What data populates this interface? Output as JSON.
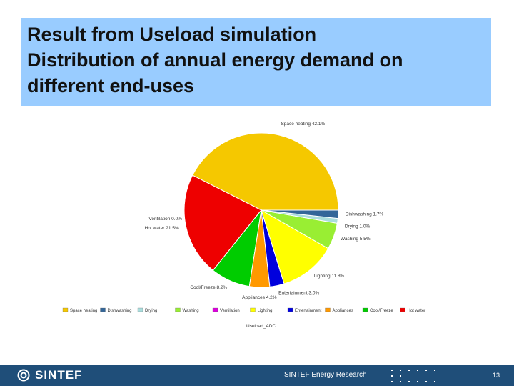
{
  "slide": {
    "title_lines": [
      "Result from Useload simulation",
      "Distribution of annual energy demand on",
      "different end-uses"
    ],
    "footer_org": "SINTEF Energy Research",
    "logo_text": "SINTEF",
    "page_number": "13",
    "footer_color": "#1f4e79",
    "title_bg_color": "#99ccff"
  },
  "chart_data": {
    "type": "pie",
    "caption": "Useload_ADC",
    "slices": [
      {
        "name": "Space heating",
        "value": 42.1,
        "label": "Space heating 42.1%",
        "color": "#f5c800"
      },
      {
        "name": "Hot water",
        "value": 21.5,
        "label": "Hot water 21.5%",
        "color": "#ee0000"
      },
      {
        "name": "Cool/Freeze",
        "value": 8.2,
        "label": "Cool/Freeze 8.2%",
        "color": "#00cc00"
      },
      {
        "name": "Appliances",
        "value": 4.2,
        "label": "Appliances 4.2%",
        "color": "#ff9900"
      },
      {
        "name": "Entertainment",
        "value": 3.0,
        "label": "Entertainment 3.0%",
        "color": "#0000dd"
      },
      {
        "name": "Lighting",
        "value": 11.8,
        "label": "Lighting 11.8%",
        "color": "#ffff00"
      },
      {
        "name": "Ventilation",
        "value": 0.0,
        "label": "Ventilation 0.0%",
        "color": "#dd00dd"
      },
      {
        "name": "Washing",
        "value": 5.5,
        "label": "Washing 5.5%",
        "color": "#99ee33"
      },
      {
        "name": "Drying",
        "value": 1.0,
        "label": "Drying 1.0%",
        "color": "#aadddd"
      },
      {
        "name": "Dishwashing",
        "value": 1.7,
        "label": "Dishwashing 1.7%",
        "color": "#336699"
      }
    ],
    "legend": [
      {
        "name": "Space heating",
        "color": "#f5c800"
      },
      {
        "name": "Dishwashing",
        "color": "#336699"
      },
      {
        "name": "Drying",
        "color": "#aadddd"
      },
      {
        "name": "Washing",
        "color": "#99ee33"
      },
      {
        "name": "Ventilation",
        "color": "#dd00dd"
      },
      {
        "name": "Lighting",
        "color": "#ffff00"
      },
      {
        "name": "Entertainment",
        "color": "#0000dd"
      },
      {
        "name": "Appliances",
        "color": "#ff9900"
      },
      {
        "name": "Cool/Freeze",
        "color": "#00cc00"
      },
      {
        "name": "Hot water",
        "color": "#ee0000"
      }
    ],
    "legend_position": "bottom"
  }
}
